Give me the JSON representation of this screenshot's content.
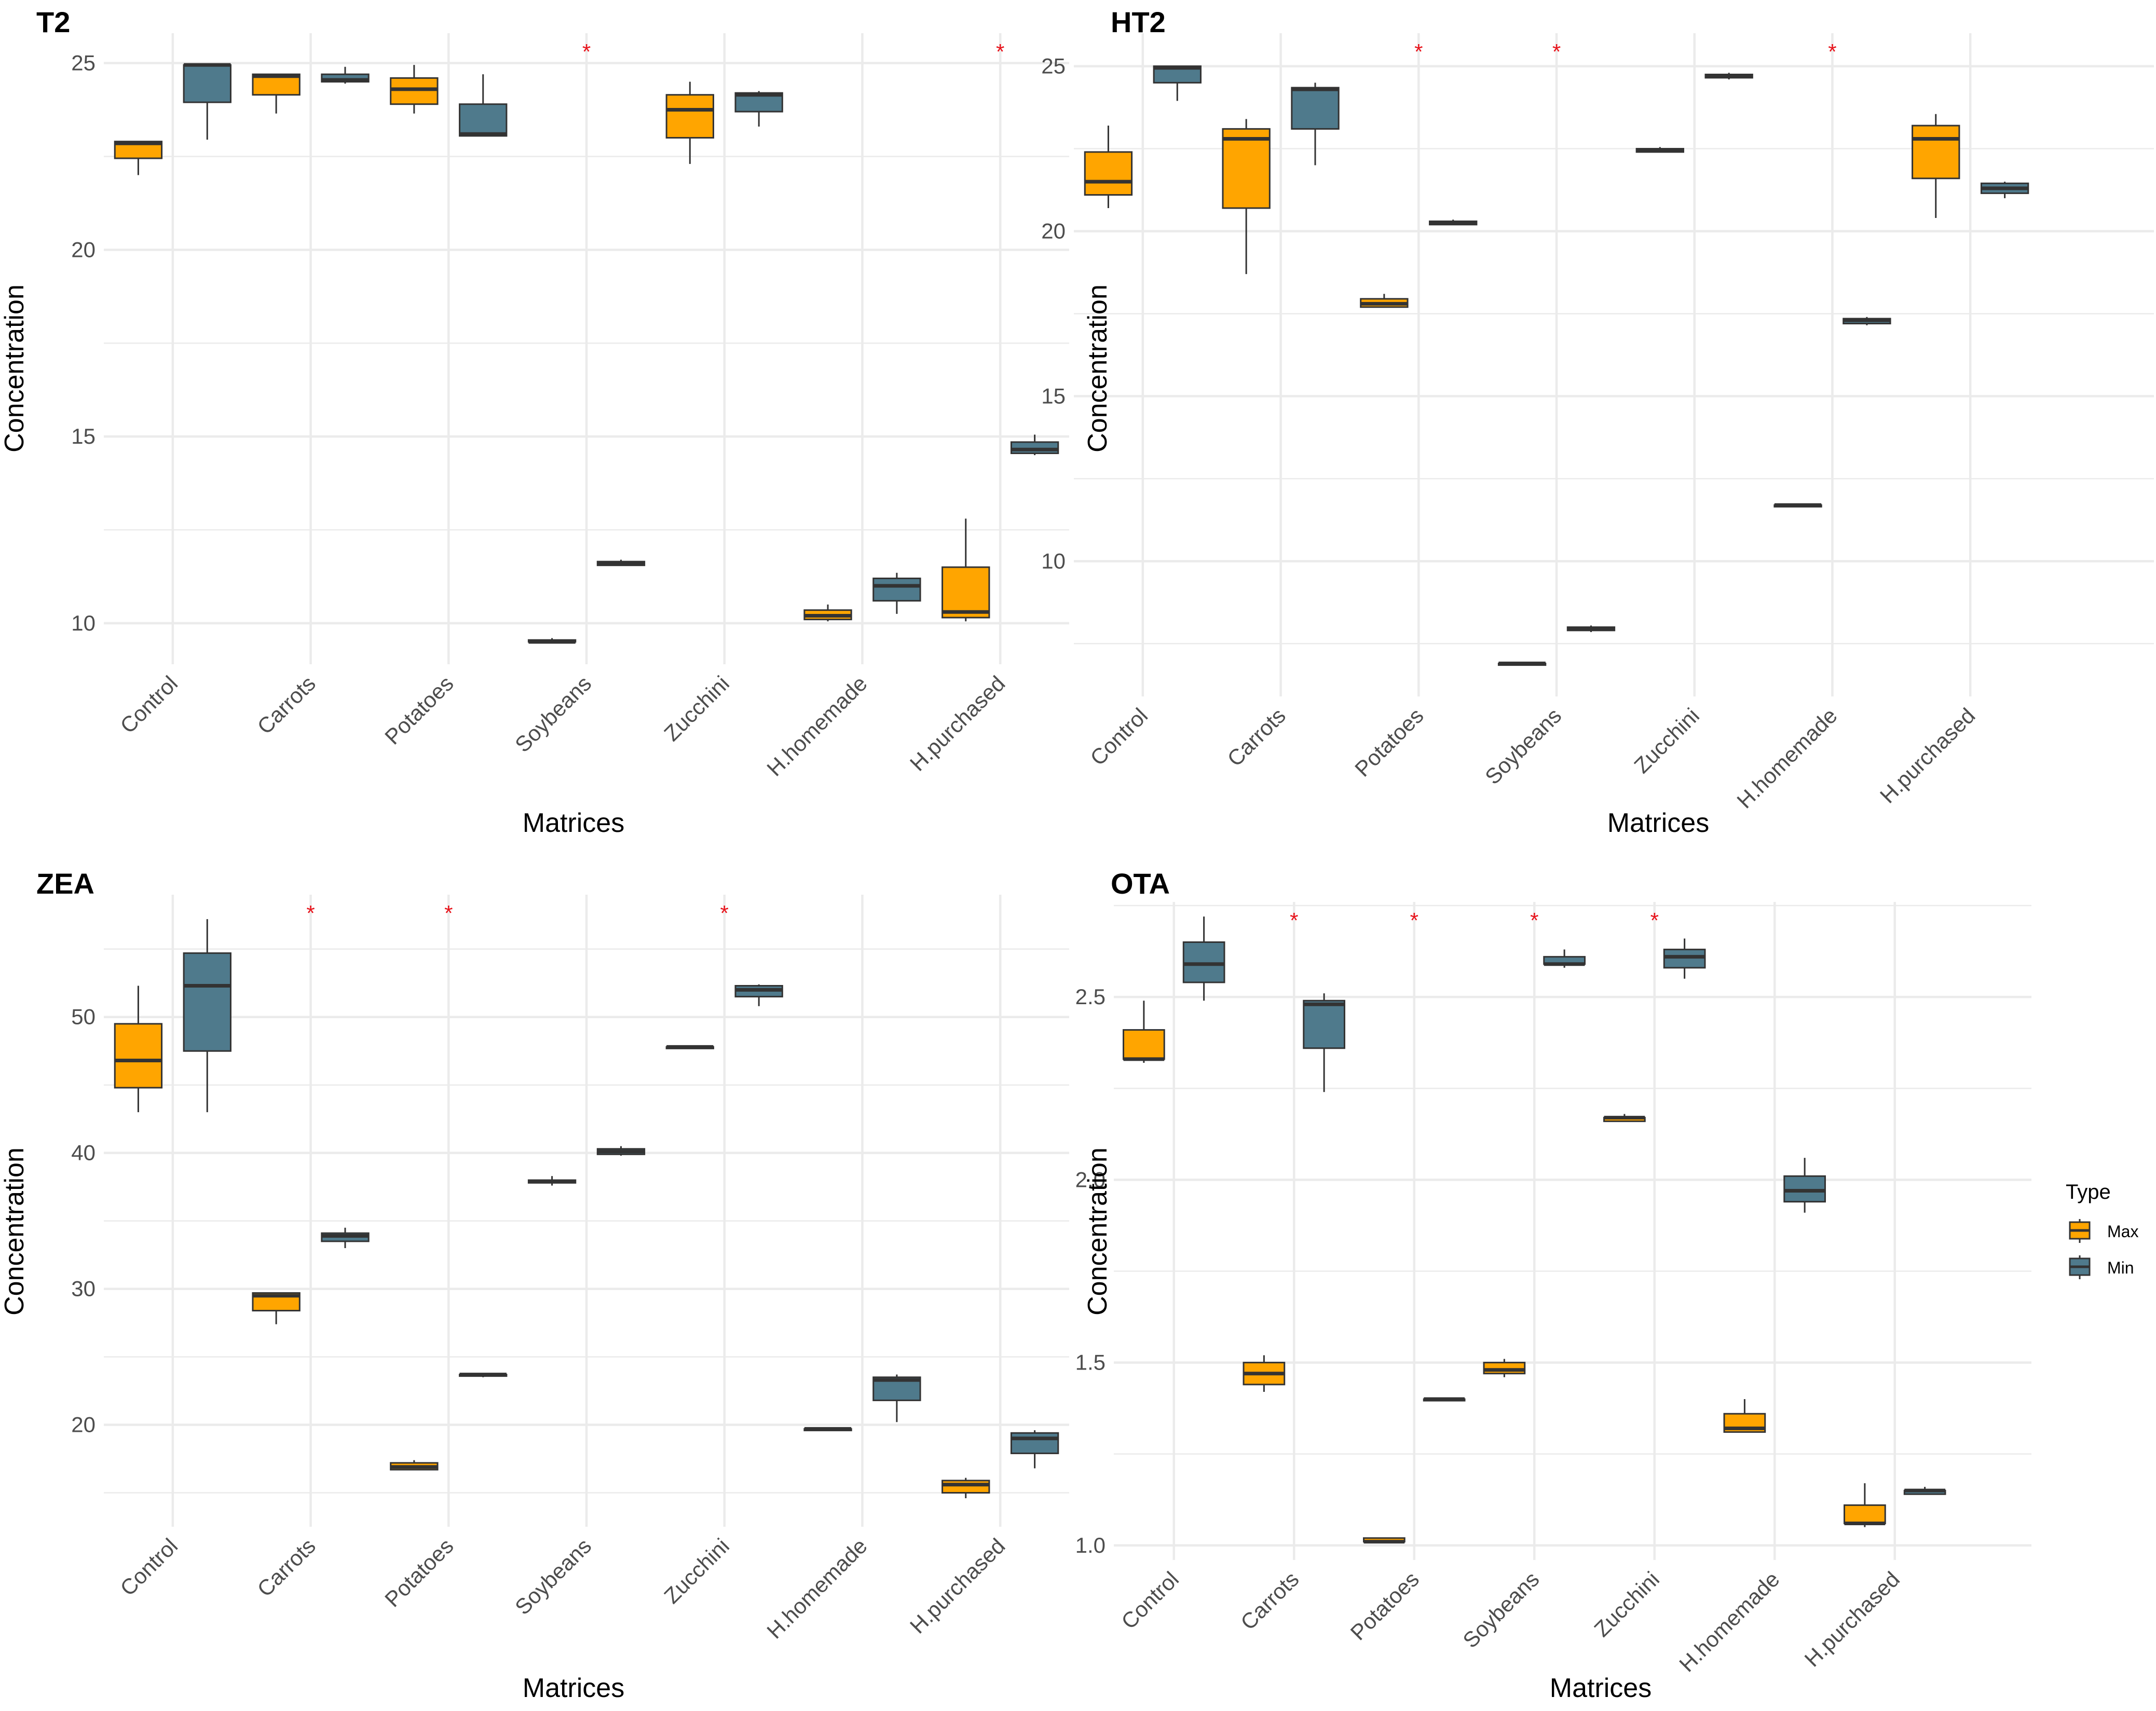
{
  "colors": {
    "max": "#FFA500",
    "min": "#4F7A8C",
    "star": "#E8141C",
    "grid": "#EBEBEB",
    "axis_text": "#4D4D4D"
  },
  "legend": {
    "title": "Type",
    "items": [
      "Max",
      "Min"
    ]
  },
  "chart_data": [
    {
      "type": "box",
      "title": "T2",
      "xlabel": "Matrices",
      "ylabel": "Concentration",
      "categories": [
        "Control",
        "Carrots",
        "Potatoes",
        "Soybeans",
        "Zucchini",
        "H.homemade",
        "H.purchased"
      ],
      "ylim": [
        8.9,
        25.8
      ],
      "yticks": [
        10,
        15,
        20,
        25
      ],
      "significance": [
        "Soybeans",
        "H.purchased"
      ],
      "series": [
        {
          "name": "Max",
          "boxes": [
            [
              22.0,
              22.45,
              22.85,
              22.9,
              22.9
            ],
            [
              23.65,
              24.15,
              24.65,
              24.7,
              24.7
            ],
            [
              23.65,
              23.9,
              24.3,
              24.6,
              24.95
            ],
            [
              9.5,
              9.5,
              9.5,
              9.55,
              9.6
            ],
            [
              22.3,
              23.0,
              23.75,
              24.15,
              24.5
            ],
            [
              10.05,
              10.1,
              10.2,
              10.35,
              10.5
            ],
            [
              10.05,
              10.15,
              10.3,
              11.5,
              12.8
            ]
          ]
        },
        {
          "name": "Min",
          "boxes": [
            [
              22.95,
              23.95,
              24.95,
              24.95,
              24.95
            ],
            [
              24.45,
              24.5,
              24.55,
              24.7,
              24.9
            ],
            [
              23.05,
              23.05,
              23.1,
              23.9,
              24.7
            ],
            [
              11.55,
              11.55,
              11.6,
              11.65,
              11.7
            ],
            [
              23.3,
              23.7,
              24.15,
              24.2,
              24.25
            ],
            [
              10.25,
              10.6,
              11.0,
              11.2,
              11.35
            ],
            [
              14.5,
              14.55,
              14.65,
              14.85,
              15.05
            ]
          ]
        }
      ]
    },
    {
      "type": "box",
      "title": "HT2",
      "xlabel": "Matrices",
      "ylabel": "Concentration",
      "categories": [
        "Control",
        "Carrots",
        "Potatoes",
        "Soybeans",
        "Zucchini",
        "H.homemade",
        "H.purchased"
      ],
      "ylim": [
        5.9,
        26.0
      ],
      "yticks": [
        10,
        15,
        20,
        25
      ],
      "significance": [
        "Potatoes",
        "Soybeans",
        "H.homemade"
      ],
      "series": [
        {
          "name": "Max",
          "boxes": [
            [
              20.7,
              21.1,
              21.5,
              22.4,
              23.2
            ],
            [
              18.7,
              20.7,
              22.8,
              23.1,
              23.4
            ],
            [
              17.7,
              17.7,
              17.8,
              17.95,
              18.1
            ],
            [
              6.85,
              6.85,
              6.9,
              6.9,
              6.9
            ],
            [
              22.4,
              22.4,
              22.45,
              22.5,
              22.55
            ],
            [
              11.65,
              11.65,
              11.7,
              11.7,
              11.75
            ],
            [
              20.4,
              21.6,
              22.8,
              23.2,
              23.55
            ]
          ]
        },
        {
          "name": "Min",
          "boxes": [
            [
              23.95,
              24.5,
              24.95,
              25.0,
              25.0
            ],
            [
              22.0,
              23.1,
              24.3,
              24.35,
              24.5
            ],
            [
              20.2,
              20.2,
              20.25,
              20.3,
              20.35
            ],
            [
              7.85,
              7.9,
              7.95,
              8.0,
              8.05
            ],
            [
              24.6,
              24.65,
              24.7,
              24.75,
              24.8
            ],
            [
              17.15,
              17.2,
              17.3,
              17.35,
              17.4
            ],
            [
              21.0,
              21.15,
              21.3,
              21.45,
              21.5
            ]
          ]
        }
      ]
    },
    {
      "type": "box",
      "title": "ZEA",
      "xlabel": "Matrices",
      "ylabel": "Concentration",
      "categories": [
        "Control",
        "Carrots",
        "Potatoes",
        "Soybeans",
        "Zucchini",
        "H.homemade",
        "H.purchased"
      ],
      "ylim": [
        12.5,
        59.0
      ],
      "yticks": [
        20,
        30,
        40,
        50
      ],
      "significance": [
        "Carrots",
        "Potatoes",
        "Zucchini"
      ],
      "series": [
        {
          "name": "Max",
          "boxes": [
            [
              43.0,
              44.8,
              46.8,
              49.5,
              52.3
            ],
            [
              27.4,
              28.4,
              29.5,
              29.7,
              29.7
            ],
            [
              16.7,
              16.7,
              16.9,
              17.2,
              17.4
            ],
            [
              37.6,
              37.8,
              37.9,
              38.0,
              38.3
            ],
            [
              47.7,
              47.7,
              47.8,
              47.8,
              47.8
            ],
            [
              19.6,
              19.6,
              19.7,
              19.7,
              19.8
            ],
            [
              14.6,
              15.0,
              15.6,
              15.9,
              16.1
            ]
          ]
        },
        {
          "name": "Min",
          "boxes": [
            [
              43.0,
              47.5,
              52.3,
              54.7,
              57.2
            ],
            [
              33.0,
              33.5,
              33.9,
              34.1,
              34.5
            ],
            [
              23.5,
              23.6,
              23.7,
              23.7,
              23.8
            ],
            [
              39.8,
              39.9,
              40.1,
              40.3,
              40.5
            ],
            [
              50.8,
              51.5,
              52.0,
              52.3,
              52.4
            ],
            [
              20.2,
              21.8,
              23.3,
              23.5,
              23.7
            ],
            [
              16.8,
              17.9,
              19.0,
              19.4,
              19.6
            ]
          ]
        }
      ]
    },
    {
      "type": "box",
      "title": "OTA",
      "xlabel": "Matrices",
      "ylabel": "Concentration",
      "categories": [
        "Control",
        "Carrots",
        "Potatoes",
        "Soybeans",
        "Zucchini",
        "H.homemade",
        "H.purchased"
      ],
      "ylim": [
        0.96,
        2.76
      ],
      "yticks": [
        1.0,
        1.5,
        2.0,
        2.5
      ],
      "yticklabels": [
        "1.0",
        "1.5",
        "2.0",
        "2.5"
      ],
      "significance": [
        "Carrots",
        "Potatoes",
        "Soybeans",
        "Zucchini"
      ],
      "series": [
        {
          "name": "Max",
          "boxes": [
            [
              2.32,
              2.33,
              2.33,
              2.41,
              2.49
            ],
            [
              1.42,
              1.44,
              1.47,
              1.5,
              1.52
            ],
            [
              1.01,
              1.01,
              1.01,
              1.02,
              1.02
            ],
            [
              1.46,
              1.47,
              1.48,
              1.5,
              1.51
            ],
            [
              2.16,
              2.16,
              2.17,
              2.17,
              2.18
            ],
            [
              1.31,
              1.31,
              1.32,
              1.36,
              1.4
            ],
            [
              1.05,
              1.06,
              1.06,
              1.11,
              1.17
            ]
          ]
        },
        {
          "name": "Min",
          "boxes": [
            [
              2.49,
              2.54,
              2.59,
              2.65,
              2.72
            ],
            [
              2.24,
              2.36,
              2.48,
              2.49,
              2.51
            ],
            [
              1.4,
              1.4,
              1.4,
              1.4,
              1.4
            ],
            [
              2.58,
              2.59,
              2.59,
              2.61,
              2.63
            ],
            [
              2.55,
              2.58,
              2.61,
              2.63,
              2.66
            ],
            [
              1.91,
              1.94,
              1.97,
              2.01,
              2.06
            ],
            [
              1.14,
              1.14,
              1.15,
              1.15,
              1.16
            ]
          ]
        }
      ]
    }
  ]
}
